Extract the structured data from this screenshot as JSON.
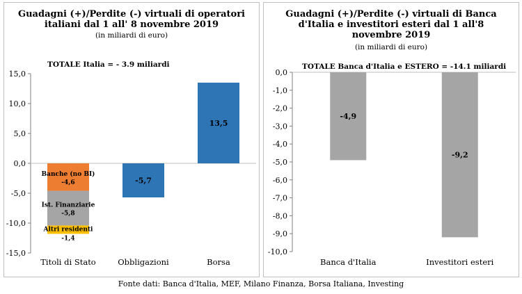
{
  "source_note": "Fonte dati: Banca d'Italia, MEF, Milano Finanza, Borsa Italiana, Investing",
  "chart_data": [
    {
      "type": "bar",
      "title": "Guadagni (+)/Perdite (-) virtuali di operatori italiani dal 1 all' 8 novembre 2019",
      "subtitle": "(in miliardi di euro)",
      "total_label": "TOTALE Italia = - 3.9 miliardi",
      "categories": [
        "Titoli di Stato",
        "Obbligazioni",
        "Borsa"
      ],
      "series": [
        {
          "name": "Banche (no BI)",
          "values": [
            -4.6,
            null,
            null
          ],
          "labels": [
            "-4,6",
            "",
            ""
          ],
          "color": "#ed7d31"
        },
        {
          "name": "Ist. Finanziarie",
          "values": [
            -5.8,
            null,
            null
          ],
          "labels": [
            "-5,8",
            "",
            ""
          ],
          "color": "#a5a5a5"
        },
        {
          "name": "Altri residenti",
          "values": [
            -1.4,
            null,
            null
          ],
          "labels": [
            "-1,4",
            "",
            ""
          ],
          "color": "#ffc000"
        },
        {
          "name": "",
          "values": [
            null,
            -5.7,
            13.5
          ],
          "labels": [
            "",
            "-5,7",
            "13,5"
          ],
          "color": "#2e75b6"
        }
      ],
      "stacked": true,
      "ylim": [
        -15,
        15
      ],
      "yticks": [
        "15,0",
        "10,0",
        "5,0",
        "0,0",
        "-5,0",
        "-10,0",
        "-15,0"
      ],
      "grid": false
    },
    {
      "type": "bar",
      "title": "Guadagni (+)/Perdite (-) virtuali di Banca d'Italia e investitori esteri dal 1 all'8 novembre 2019",
      "title_lines": [
        "Guadagni (+)/Perdite (-) virtuali di Banca",
        "d'Italia e investitori esteri dal 1 all'8",
        "novembre 2019"
      ],
      "subtitle": "(in miliardi di euro)",
      "total_label": "TOTALE Banca d'Italia e ESTERO = -14.1 miliardi",
      "categories": [
        "Banca d'Italia",
        "Investitori esteri"
      ],
      "series": [
        {
          "name": "",
          "values": [
            -4.9,
            -9.2
          ],
          "labels": [
            "-4,9",
            "-9,2"
          ],
          "color": "#a5a5a5"
        }
      ],
      "ylim": [
        -10,
        0
      ],
      "yticks": [
        "0,0",
        "-1,0",
        "-2,0",
        "-3,0",
        "-4,0",
        "-5,0",
        "-6,0",
        "-7,0",
        "-8,0",
        "-9,0",
        "-10,0"
      ],
      "grid": false
    }
  ]
}
